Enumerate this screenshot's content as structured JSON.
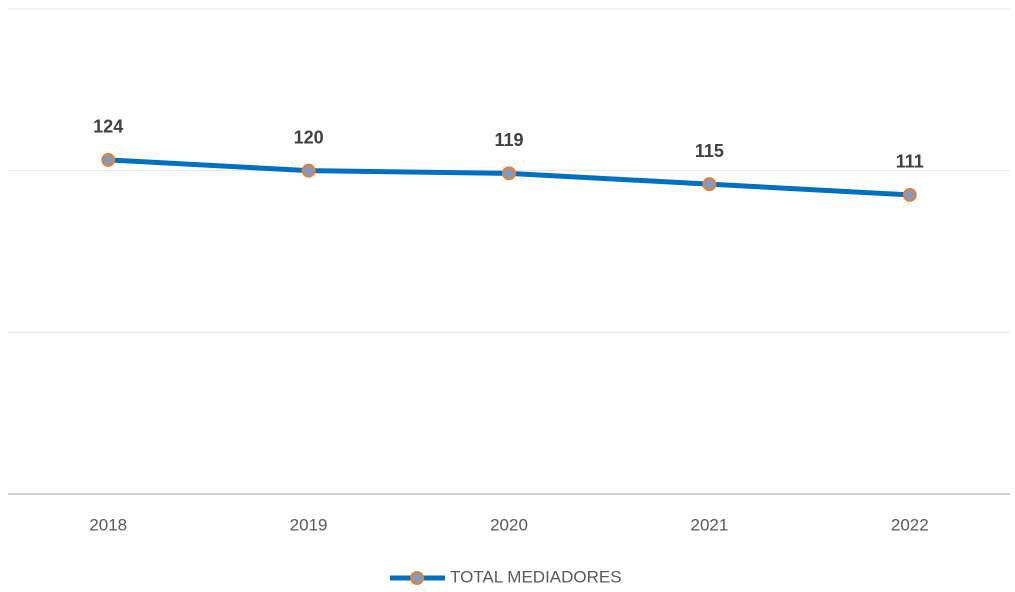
{
  "chart_data": {
    "type": "line",
    "categories": [
      "2018",
      "2019",
      "2020",
      "2021",
      "2022"
    ],
    "series": [
      {
        "name": "TOTAL MEDIADORES",
        "color": "#0070c0",
        "marker_fill": "#7f9cc0",
        "marker_edge": "#ed7d31",
        "values": [
          124,
          120,
          119,
          115,
          111
        ]
      }
    ],
    "ylim": [
      0,
      180
    ],
    "yticks": [
      0,
      60,
      120,
      180
    ],
    "grid": true,
    "legend": "bottom"
  }
}
